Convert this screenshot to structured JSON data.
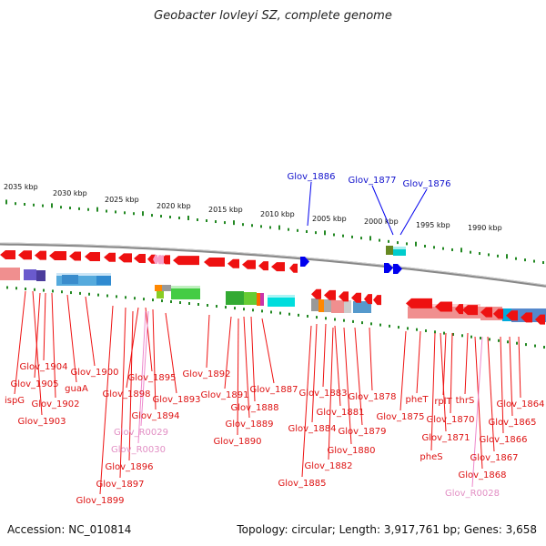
{
  "header": {
    "title": "Geobacter lovleyi SZ, complete genome"
  },
  "footer": {
    "accession": "Accession: NC_010814",
    "topology": "Topology: circular; Length: 3,917,761 bp; Genes: 3,658"
  },
  "colors": {
    "forward_gene": "#ee1111",
    "reverse_gene": "#0000ee",
    "rna_label": "#ee88cc",
    "scale_tick": "#228822",
    "backbone": "#888888"
  },
  "scale": {
    "tick_labels": [
      "2035 kbp",
      "2030 kbp",
      "2025 kbp",
      "2020 kbp",
      "2015 kbp",
      "2010 kbp",
      "2005 kbp",
      "2000 kbp",
      "1995 kbp",
      "1990 kbp"
    ]
  },
  "upper_labels": [
    "Glov_1886",
    "Glov_1877",
    "Glov_1876"
  ],
  "lower_labels": [
    "Glov_1904",
    "Glov_1905",
    "ispG",
    "Glov_1902",
    "Glov_1903",
    "Glov_1900",
    "guaA",
    "Glov_1898",
    "Glov_1895",
    "Glov_1894",
    "Glov_R0029",
    "Glov_R0030",
    "Glov_1896",
    "Glov_1897",
    "Glov_1899",
    "Glov_1893",
    "Glov_1892",
    "Glov_1891",
    "Glov_1888",
    "Glov_1889",
    "Glov_1890",
    "Glov_1887",
    "Glov_1883",
    "Glov_1884",
    "Glov_1881",
    "Glov_1882",
    "Glov_1885",
    "Glov_1880",
    "Glov_1879",
    "Glov_1878",
    "Glov_1875",
    "pheT",
    "rplT",
    "thrS",
    "Glov_1870",
    "Glov_1871",
    "pheS",
    "Glov_1864",
    "Glov_1865",
    "Glov_1866",
    "Glov_1867",
    "Glov_1868",
    "Glov_R0028"
  ]
}
